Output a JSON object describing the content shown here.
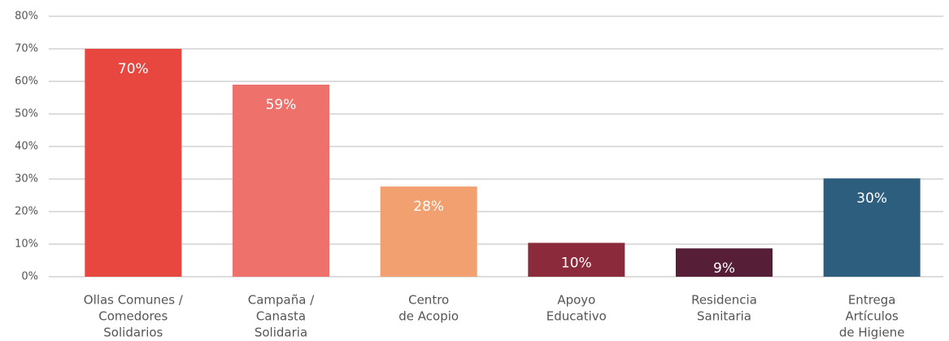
{
  "chart_data": {
    "type": "bar",
    "categories": [
      [
        "Ollas Comunes /",
        "Comedores",
        "Solidarios"
      ],
      [
        "Campaña /",
        "Canasta",
        "Solidaria"
      ],
      [
        "Centro",
        "de Acopio"
      ],
      [
        "Apoyo",
        "Educativo"
      ],
      [
        "Residencia",
        "Sanitaria"
      ],
      [
        "Entrega",
        "Artículos",
        "de Higiene"
      ]
    ],
    "values": [
      70,
      59,
      27.7,
      10.4,
      8.7,
      30.2
    ],
    "value_labels": [
      "70%",
      "59%",
      "28%",
      "10%",
      "9%",
      "30%"
    ],
    "colors": [
      "#e8473f",
      "#ee716b",
      "#f2a06f",
      "#8b2a3a",
      "#561f37",
      "#2e5e7e"
    ],
    "ylim": [
      0,
      80
    ],
    "yticks": [
      {
        "value": 0,
        "label": "0%"
      },
      {
        "value": 10,
        "label": "10%"
      },
      {
        "value": 20,
        "label": "20%"
      },
      {
        "value": 30,
        "label": "30%"
      },
      {
        "value": 40,
        "label": "40%"
      },
      {
        "value": 50,
        "label": "50%"
      },
      {
        "value": 60,
        "label": "60%"
      },
      {
        "value": 70,
        "label": "70%"
      },
      {
        "value": 80,
        "label": "80%"
      }
    ],
    "grid": true
  }
}
